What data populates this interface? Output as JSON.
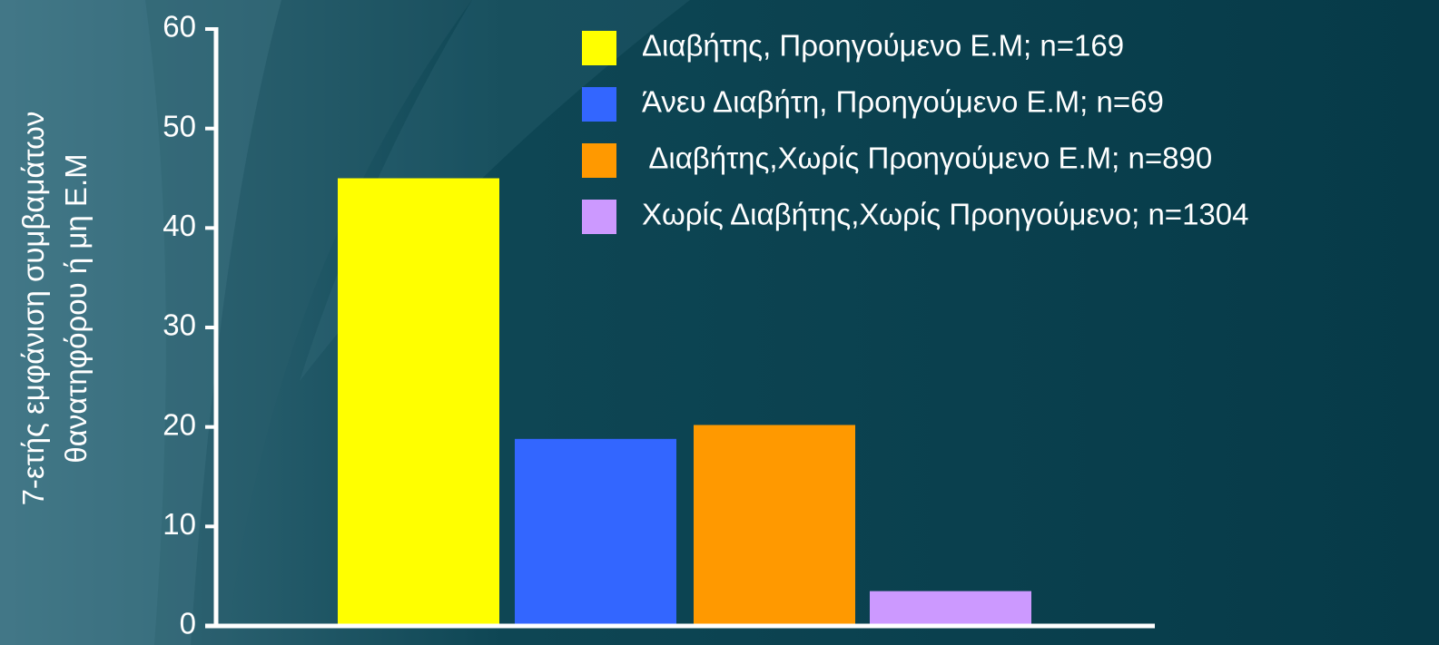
{
  "chart_data": {
    "type": "bar",
    "title": "",
    "ylabel_lines": [
      "7-ετής εμφάνιση συμβαμάτων",
      "θανατηφόρου ή μη Ε.Μ"
    ],
    "xlabel": "",
    "ylim": [
      0,
      60
    ],
    "yticks": [
      0,
      10,
      20,
      30,
      40,
      50,
      60
    ],
    "grid": false,
    "legend_position": "top-right",
    "series": [
      {
        "name": "Διαβήτης, Προηγούμενο Ε.Μ; n=169",
        "value": 45.0,
        "color": "#ffff00"
      },
      {
        "name": "Άνευ Διαβήτη, Προηγούμενο Ε.Μ; n=69",
        "value": 18.8,
        "color": "#3366ff"
      },
      {
        "name": " Διαβήτης,Χωρίς Προηγούμενο Ε.Μ; n=890",
        "value": 20.2,
        "color": "#ff9900"
      },
      {
        "name": "Χωρίς Διαβήτης,Χωρίς Προηγούμενο; n=1304",
        "value": 3.5,
        "color": "#cc99ff"
      }
    ]
  },
  "colors": {
    "background": "#063a48",
    "axis": "#ffffff",
    "text": "#ffffff"
  }
}
